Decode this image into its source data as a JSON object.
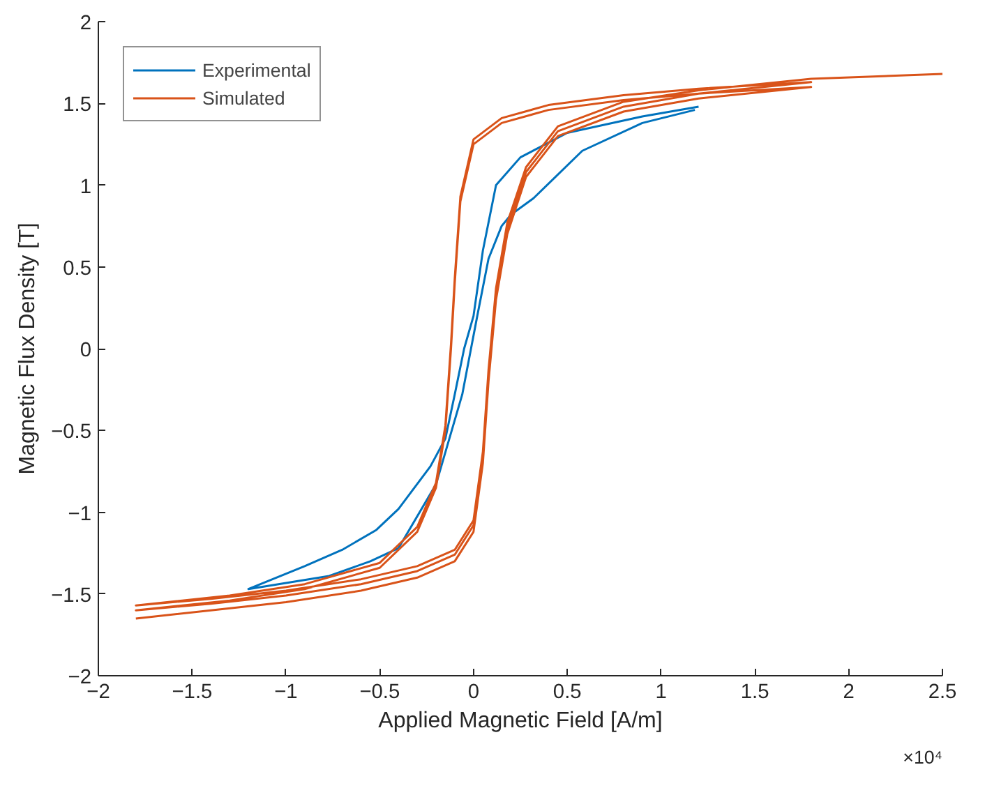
{
  "chart_data": {
    "type": "line",
    "xlabel": "Applied Magnetic Field [A/m]",
    "ylabel": "Magnetic Flux Density [T]",
    "annotations": [
      "×10⁴"
    ],
    "xlim": [
      -2,
      2.5
    ],
    "xticks": [
      -2,
      -1.5,
      -1,
      -0.5,
      0,
      0.5,
      1,
      1.5,
      2,
      2.5
    ],
    "ylim": [
      -2,
      2
    ],
    "yticks": [
      -2,
      -1.5,
      -1,
      -0.5,
      0,
      0.5,
      1,
      1.5,
      2
    ],
    "grid": false,
    "legend": "top left",
    "line_style": "solid",
    "marker": "none",
    "series": [
      {
        "name": "Experimental",
        "color": "#0072bd",
        "x": [
          1.2,
          0.9,
          0.5,
          0.25,
          0.12,
          0.05,
          0.0,
          -0.05,
          -0.1,
          -0.15,
          -0.23,
          -0.4,
          -0.52,
          -0.7,
          -0.9,
          -1.2,
          -0.77,
          -0.55,
          -0.4,
          -0.2,
          -0.06,
          0.02,
          0.08,
          0.15,
          0.2,
          0.32,
          0.58,
          0.9,
          1.18
        ],
        "values": [
          1.48,
          1.42,
          1.32,
          1.17,
          1.0,
          0.6,
          0.2,
          0.0,
          -0.28,
          -0.55,
          -0.72,
          -0.98,
          -1.11,
          -1.23,
          -1.33,
          -1.47,
          -1.39,
          -1.3,
          -1.22,
          -0.83,
          -0.28,
          0.2,
          0.55,
          0.75,
          0.82,
          0.92,
          1.21,
          1.38,
          1.46
        ]
      },
      {
        "name": "Simulated",
        "color": "#d95319",
        "x": [
          -1.8,
          -1.4,
          -1.0,
          -0.6,
          -0.3,
          -0.1,
          0.0,
          0.05,
          0.08,
          0.12,
          0.18,
          0.28,
          0.45,
          0.8,
          1.2,
          1.8,
          1.2,
          0.8,
          0.4,
          0.15,
          0.0,
          -0.07,
          -0.1,
          -0.12,
          -0.15,
          -0.2,
          -0.3,
          -0.5,
          -0.9,
          -1.3,
          -1.8,
          -1.4,
          -1.0,
          -0.6,
          -0.3,
          -0.1,
          0.0,
          0.05,
          0.08,
          0.12,
          0.18,
          0.28,
          0.45,
          0.8,
          1.2,
          1.8,
          1.2,
          0.8,
          0.4,
          0.15,
          0.0,
          -0.07,
          -0.1,
          -0.12,
          -0.15,
          -0.2,
          -0.3,
          -0.5,
          -0.9,
          -1.3,
          -1.8,
          -1.4,
          -1.0,
          -0.6,
          -0.3,
          -0.1,
          0.0,
          0.05,
          0.08,
          0.12,
          0.18,
          0.28,
          0.45,
          0.8,
          1.2,
          1.8,
          2.5
        ],
        "values": [
          -1.65,
          -1.6,
          -1.55,
          -1.48,
          -1.4,
          -1.3,
          -1.12,
          -0.7,
          -0.2,
          0.3,
          0.7,
          1.05,
          1.3,
          1.45,
          1.53,
          1.6,
          1.56,
          1.52,
          1.46,
          1.38,
          1.25,
          0.9,
          0.4,
          0.0,
          -0.5,
          -0.85,
          -1.12,
          -1.34,
          -1.47,
          -1.54,
          -1.6,
          -1.56,
          -1.51,
          -1.44,
          -1.36,
          -1.26,
          -1.08,
          -0.66,
          -0.16,
          0.34,
          0.74,
          1.08,
          1.33,
          1.48,
          1.56,
          1.63,
          1.59,
          1.55,
          1.49,
          1.41,
          1.28,
          0.93,
          0.43,
          0.03,
          -0.47,
          -0.82,
          -1.09,
          -1.31,
          -1.44,
          -1.51,
          -1.57,
          -1.53,
          -1.48,
          -1.41,
          -1.33,
          -1.23,
          -1.05,
          -0.63,
          -0.13,
          0.37,
          0.77,
          1.11,
          1.36,
          1.51,
          1.58,
          1.65,
          1.68
        ]
      }
    ]
  }
}
